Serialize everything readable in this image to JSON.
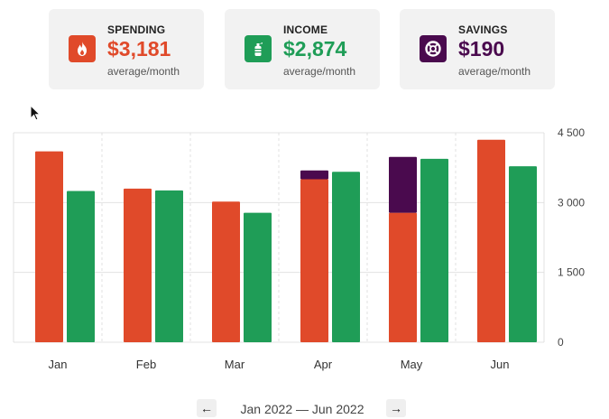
{
  "cards": {
    "spending": {
      "label": "SPENDING",
      "value": "$3,181",
      "sub": "average/month",
      "color": "#e04a2a",
      "icon": "flame-icon"
    },
    "income": {
      "label": "INCOME",
      "value": "$2,874",
      "sub": "average/month",
      "color": "#1f9d57",
      "icon": "fire-extinguisher-icon"
    },
    "savings": {
      "label": "SAVINGS",
      "value": "$190",
      "sub": "average/month",
      "color": "#4a0a4e",
      "icon": "lifebuoy-icon"
    }
  },
  "pager": {
    "range": "Jan 2022 — Jun 2022",
    "prev": "←",
    "next": "→"
  },
  "chart_data": {
    "type": "bar",
    "categories": [
      "Jan",
      "Feb",
      "Mar",
      "Apr",
      "May",
      "Jun"
    ],
    "series": [
      {
        "values": [
          4100,
          3300,
          3020,
          3500,
          2780,
          4350
        ],
        "color": "#e04a2a"
      },
      {
        "values": [
          3250,
          3260,
          2780,
          3660,
          3940,
          3780
        ],
        "color": "#1f9d57"
      },
      {
        "values": [
          0,
          0,
          0,
          190,
          1200,
          0
        ],
        "color": "#4a0a4e"
      }
    ],
    "stacked_on_first": [
      2
    ],
    "y_ticks": [
      {
        "value": 4500,
        "label": "4 500"
      },
      {
        "value": 3000,
        "label": "3 000"
      },
      {
        "value": 1500,
        "label": "1 500"
      },
      {
        "value": 0,
        "label": "0"
      }
    ],
    "ylim": [
      0,
      4500
    ],
    "grid": true
  }
}
